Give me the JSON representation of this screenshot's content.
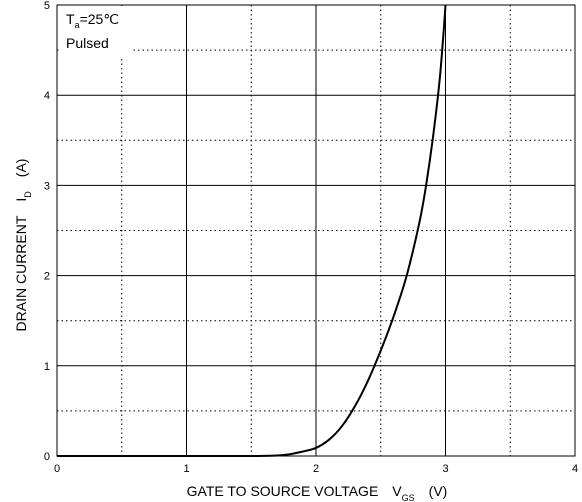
{
  "chart_data": {
    "type": "line",
    "xlabel": "GATE TO SOURCE VOLTAGE",
    "xlabel_symbol": "V",
    "xlabel_sub": "GS",
    "xlabel_unit": "(V)",
    "ylabel": "DRAIN CURRENT",
    "ylabel_symbol": "I",
    "ylabel_sub": "D",
    "ylabel_unit": "(A)",
    "annotation_line1_symbol": "T",
    "annotation_line1_sub": "a",
    "annotation_line1_rest": "=25℃",
    "annotation_line2": "Pulsed",
    "xlim": [
      0,
      4
    ],
    "ylim": [
      0,
      5
    ],
    "x_major_ticks": [
      0,
      1,
      2,
      3,
      4
    ],
    "x_tick_labels": [
      "0",
      "1",
      "2",
      "3",
      "4"
    ],
    "y_major_ticks": [
      0,
      1,
      2,
      3,
      4,
      5
    ],
    "y_tick_labels": [
      "0",
      "1",
      "2",
      "3",
      "4",
      "5"
    ],
    "x_minor_ticks": [
      0.5,
      1.5,
      2.5,
      3.5
    ],
    "y_minor_ticks": [
      0.5,
      1.5,
      2.5,
      3.5,
      4.5
    ],
    "grid": "major solid, minor dotted",
    "series": [
      {
        "color": "#000000",
        "x": [
          0,
          1.0,
          1.5,
          1.7,
          1.8,
          1.9,
          2.0,
          2.1,
          2.2,
          2.3,
          2.4,
          2.5,
          2.6,
          2.7,
          2.8,
          2.85,
          2.9,
          2.95,
          2.98,
          3.0
        ],
        "y": [
          0,
          0,
          0,
          0.005,
          0.02,
          0.05,
          0.09,
          0.18,
          0.33,
          0.55,
          0.83,
          1.17,
          1.55,
          2.0,
          2.6,
          3.0,
          3.5,
          4.1,
          4.6,
          5.0
        ]
      }
    ]
  }
}
